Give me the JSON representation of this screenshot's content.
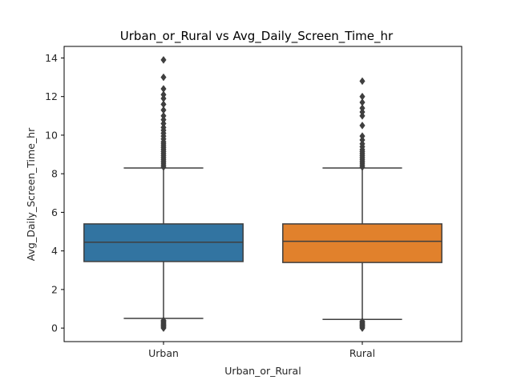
{
  "chart_data": {
    "type": "box",
    "title": "Urban_or_Rural vs Avg_Daily_Screen_Time_hr",
    "xlabel": "Urban_or_Rural",
    "ylabel": "Avg_Daily_Screen_Time_hr",
    "ylim": [
      -0.7,
      14.6
    ],
    "yticks": [
      0,
      2,
      4,
      6,
      8,
      10,
      12,
      14
    ],
    "categories": [
      "Urban",
      "Rural"
    ],
    "colors": {
      "Urban": "#3274a1",
      "Rural": "#e1812c",
      "line": "#3f3f3f"
    },
    "grid": false,
    "boxes": [
      {
        "category": "Urban",
        "whisker_low": 0.5,
        "q1": 3.45,
        "median": 4.45,
        "q3": 5.4,
        "whisker_high": 8.3,
        "outliers": [
          0.0,
          0.05,
          0.1,
          0.15,
          0.2,
          0.25,
          0.3,
          0.35,
          0.4,
          8.35,
          8.45,
          8.55,
          8.65,
          8.75,
          8.85,
          8.95,
          9.05,
          9.15,
          9.25,
          9.35,
          9.45,
          9.55,
          9.65,
          9.8,
          9.95,
          10.1,
          10.25,
          10.4,
          10.6,
          10.8,
          11.0,
          11.3,
          11.6,
          11.9,
          12.1,
          12.4,
          13.0,
          13.9
        ]
      },
      {
        "category": "Rural",
        "whisker_low": 0.45,
        "q1": 3.4,
        "median": 4.5,
        "q3": 5.4,
        "whisker_high": 8.3,
        "outliers": [
          0.0,
          0.05,
          0.1,
          0.15,
          0.2,
          0.25,
          0.3,
          0.35,
          8.35,
          8.45,
          8.55,
          8.65,
          8.75,
          8.85,
          8.95,
          9.05,
          9.15,
          9.25,
          9.4,
          9.55,
          9.75,
          9.95,
          10.5,
          11.0,
          11.2,
          11.4,
          11.7,
          12.0,
          12.8
        ]
      }
    ]
  }
}
